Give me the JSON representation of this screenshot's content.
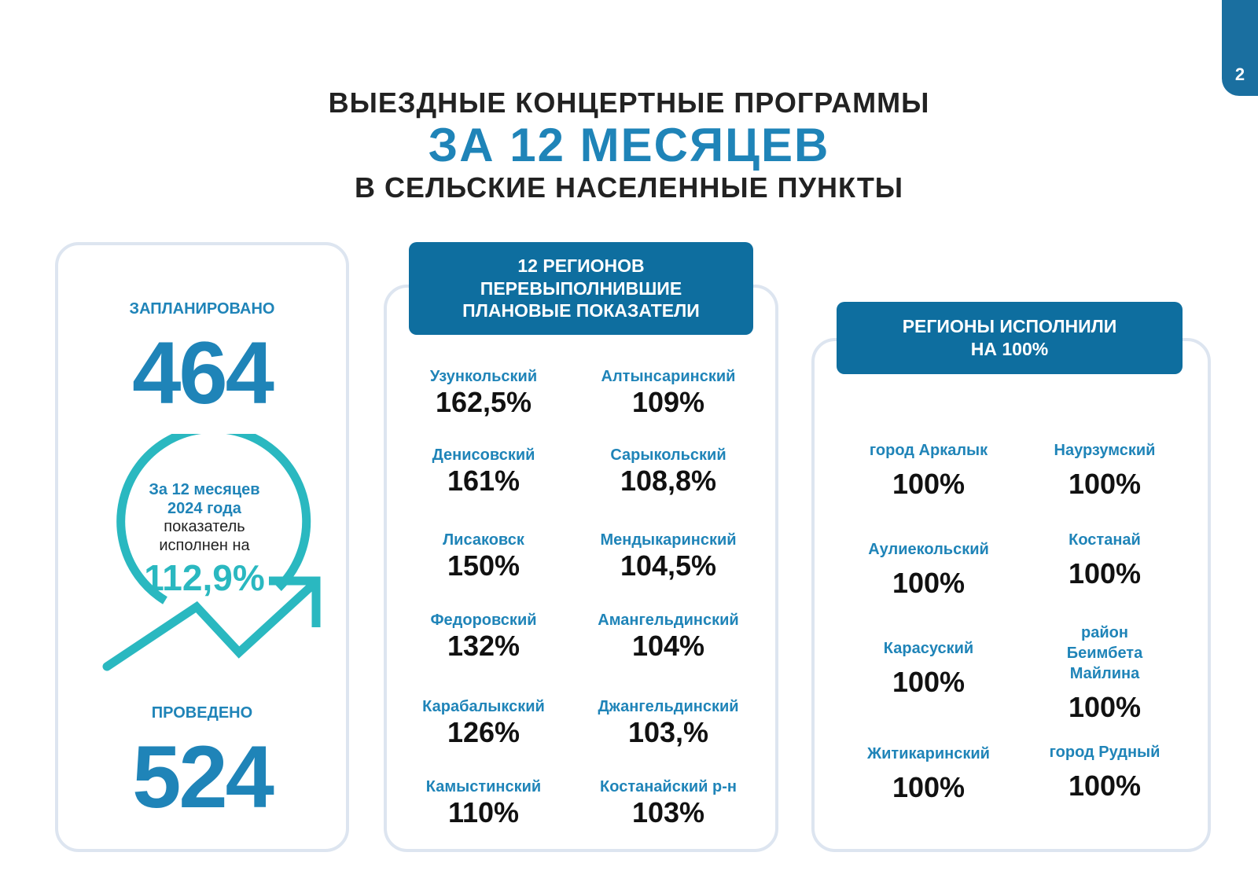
{
  "page_number": "2",
  "title": {
    "line1": "ВЫЕЗДНЫЕ КОНЦЕРТНЫЕ ПРОГРАММЫ",
    "line2": "ЗА 12 МЕСЯЦЕВ",
    "line3": "В СЕЛЬСКИЕ НАСЕЛЕННЫЕ ПУНКТЫ"
  },
  "summary": {
    "planned_label": "ЗАПЛАНИРОВАНО",
    "planned_value": "464",
    "circle_line1": "За 12 месяцев",
    "circle_line2": "2024 года",
    "circle_line3": "показатель",
    "circle_line4": "исполнен на",
    "circle_percent": "112,9%",
    "done_label": "ПРОВЕДЕНО",
    "done_value": "524"
  },
  "over": {
    "header": "12 РЕГИОНОВ ПЕРЕВЫПОЛНИВШИЕ ПЛАНОВЫЕ ПОКАЗАТЕЛИ",
    "header_lines": [
      "12 РЕГИОНОВ",
      "ПЕРЕВЫПОЛНИВШИЕ",
      "ПЛАНОВЫЕ ПОКАЗАТЕЛИ"
    ],
    "items": [
      {
        "name": "Узункольский",
        "value": "162,5%"
      },
      {
        "name": "Алтынсаринский",
        "value": "109%"
      },
      {
        "name": "Денисовский",
        "value": "161%"
      },
      {
        "name": "Сарыкольский",
        "value": "108,8%"
      },
      {
        "name": "Лисаковск",
        "value": "150%"
      },
      {
        "name": "Мендыкаринский",
        "value": "104,5%"
      },
      {
        "name": "Федоровский",
        "value": "132%"
      },
      {
        "name": "Амангельдинский",
        "value": "104%"
      },
      {
        "name": "Карабалыкский",
        "value": "126%"
      },
      {
        "name": "Джангельдинский",
        "value": "103,%"
      },
      {
        "name": "Камыстинский",
        "value": "110%"
      },
      {
        "name": "Костанайский р-н",
        "value": "103%"
      }
    ]
  },
  "full": {
    "header_lines": [
      "РЕГИОНЫ ИСПОЛНИЛИ",
      "НА 100%"
    ],
    "items": [
      {
        "name": "город Аркалык",
        "value": "100%"
      },
      {
        "name": "Наурзумский",
        "value": "100%"
      },
      {
        "name": "Аулиекольский",
        "value": "100%"
      },
      {
        "name": "Костанай",
        "value": "100%"
      },
      {
        "name": "Карасуский",
        "value": "100%"
      },
      {
        "name": "район Беимбета Майлина",
        "name_lines": [
          "район",
          "Беимбета",
          "Майлина"
        ],
        "value": "100%"
      },
      {
        "name": "Житикаринский",
        "value": "100%"
      },
      {
        "name": "город Рудный",
        "value": "100%"
      }
    ]
  },
  "colors": {
    "primary_blue": "#1f84b8",
    "header_blue": "#0e6e9f",
    "teal": "#2ab8c0",
    "text_dark": "#111111"
  }
}
